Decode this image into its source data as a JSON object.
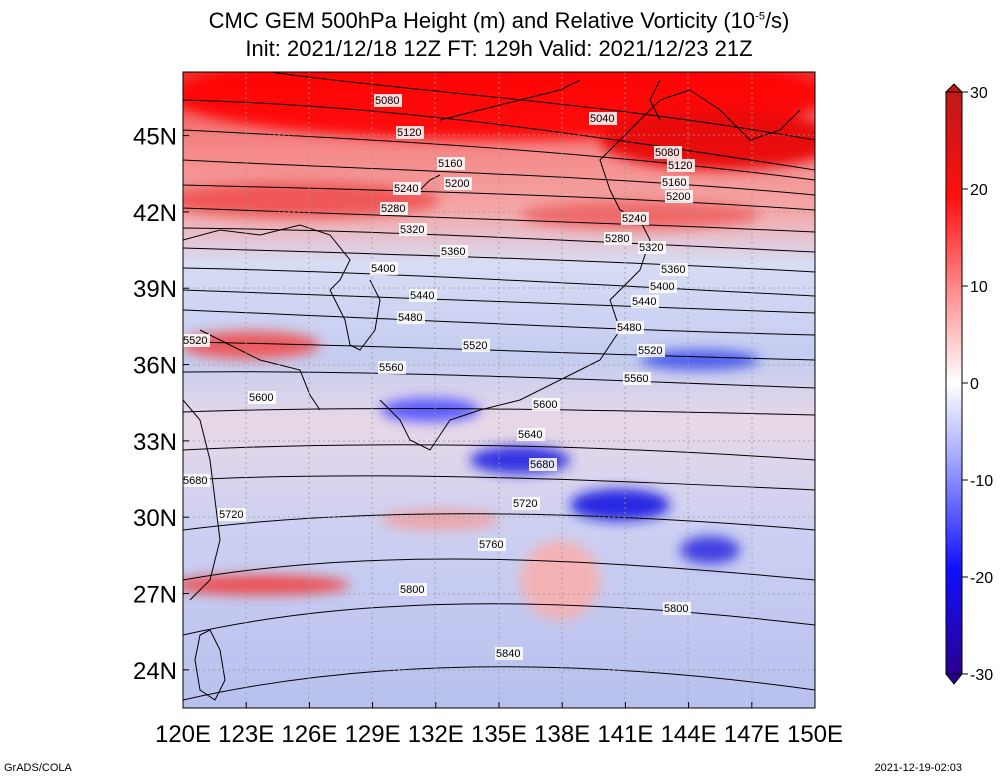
{
  "title": {
    "line1_pre": "CMC GEM 500hPa Height (m) and Relative Vorticity (10",
    "line1_sup": "-5",
    "line1_post": "/s)",
    "line2": "Init: 2021/12/18 12Z  FT: 129h  Valid: 2021/12/23 21Z"
  },
  "axes": {
    "lon_ticks": [
      "120E",
      "123E",
      "126E",
      "129E",
      "132E",
      "135E",
      "138E",
      "141E",
      "144E",
      "147E",
      "150E"
    ],
    "lat_ticks": [
      "24N",
      "27N",
      "30N",
      "33N",
      "36N",
      "39N",
      "42N",
      "45N"
    ],
    "lon_range": [
      120,
      150
    ],
    "lat_range": [
      22.5,
      47.5
    ]
  },
  "colorbar": {
    "labels": [
      "30",
      "20",
      "10",
      "0",
      "-10",
      "-20",
      "-30"
    ],
    "range": [
      -30,
      30
    ],
    "colors": {
      "max": "#b22222",
      "pos": "#ff0000",
      "zero": "#ffffff",
      "neg": "#0000ff",
      "min": "#3300aa"
    }
  },
  "contours": {
    "labels": [
      "5040",
      "5080",
      "5080",
      "5120",
      "5120",
      "5160",
      "5160",
      "5200",
      "5200",
      "5240",
      "5240",
      "5280",
      "5280",
      "5320",
      "5320",
      "5360",
      "5360",
      "5400",
      "5400",
      "5440",
      "5440",
      "5480",
      "5480",
      "5520",
      "5520",
      "5520",
      "5560",
      "5560",
      "5600",
      "5600",
      "5640",
      "5680",
      "5680",
      "5720",
      "5720",
      "5760",
      "5800",
      "5800",
      "5840"
    ]
  },
  "footer": {
    "left": "GrADS/COLA",
    "right": "2021-12-19-02:03"
  }
}
